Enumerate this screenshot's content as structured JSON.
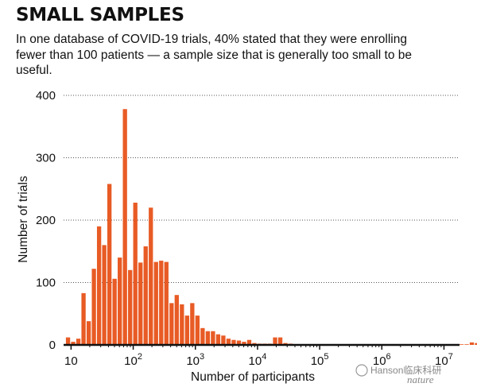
{
  "title": "SMALL SAMPLES",
  "subtitle": "In one database of COVID-19 trials, 40% stated that they were enrolling fewer than 100 patients — a sample size that is generally too small to be useful.",
  "watermark": {
    "handle": "Hanson临床科研",
    "logo_text": "nature"
  },
  "colors": {
    "bar": "#e85b25",
    "grid": "#555555",
    "axis": "#111111"
  },
  "chart_data": {
    "type": "bar",
    "title": "SMALL SAMPLES",
    "xlabel": "Number of participants",
    "ylabel": "Number of trials",
    "x_scale": "log10",
    "ylim": [
      0,
      400
    ],
    "yticks": [
      0,
      100,
      200,
      300,
      400
    ],
    "xticks": [
      {
        "value": 10,
        "base": "10",
        "exp": ""
      },
      {
        "value": 100,
        "base": "10",
        "exp": "2"
      },
      {
        "value": 1000,
        "base": "10",
        "exp": "3"
      },
      {
        "value": 10000,
        "base": "10",
        "exp": "4"
      },
      {
        "value": 100000,
        "base": "10",
        "exp": "5"
      },
      {
        "value": 1000000,
        "base": "10",
        "exp": "6"
      },
      {
        "value": 10000000,
        "base": "10",
        "exp": "7"
      }
    ],
    "grid": "horizontal dotted",
    "bin_log_width": 0.0833,
    "bin_log_start": 0.917,
    "values": [
      12,
      5,
      10,
      83,
      38,
      122,
      190,
      160,
      258,
      106,
      140,
      378,
      120,
      228,
      132,
      158,
      220,
      133,
      135,
      133,
      67,
      80,
      65,
      47,
      67,
      47,
      27,
      22,
      22,
      17,
      15,
      10,
      8,
      7,
      5,
      8,
      3,
      2,
      2,
      2,
      12,
      12,
      3,
      2,
      1,
      1,
      1,
      1,
      1,
      1,
      1,
      1,
      1,
      1,
      1,
      1,
      1,
      1,
      1,
      1,
      1,
      1,
      1,
      1,
      1,
      1,
      1,
      1,
      1,
      1,
      1,
      1,
      1,
      1,
      1,
      1,
      1,
      1,
      4,
      3,
      3
    ]
  }
}
